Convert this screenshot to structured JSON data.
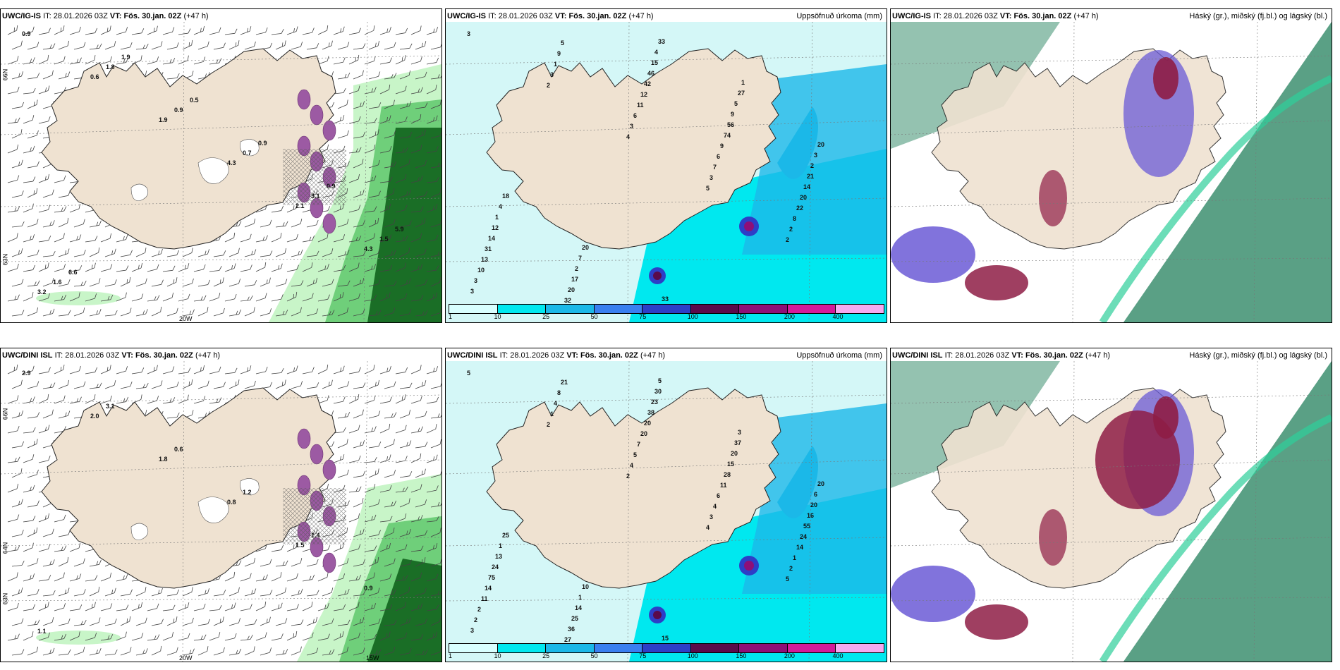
{
  "header": {
    "it_prefix": "IT:",
    "it_time": "28.01.2026 03Z",
    "vt_prefix": "VT:",
    "vt_time": "Fös. 30.jan. 02Z",
    "lead": "(+47 h)"
  },
  "panels": [
    {
      "model": "UWC/IG-IS",
      "title": "",
      "type": "wind"
    },
    {
      "model": "UWC/IG-IS",
      "title": "Uppsöfnuð úrkoma (mm)",
      "type": "precip"
    },
    {
      "model": "UWC/IG-IS",
      "title": "Háský (gr.), miðský (fj.bl.) og lágský (bl.)",
      "type": "cloud"
    },
    {
      "model": "UWC/DINI ISL",
      "title": "",
      "type": "wind"
    },
    {
      "model": "UWC/DINI ISL",
      "title": "Uppsöfnuð úrkoma (mm)",
      "type": "precip"
    },
    {
      "model": "UWC/DINI ISL",
      "title": "Háský (gr.), miðský (fj.bl.) og lágský (bl.)",
      "type": "cloud"
    }
  ],
  "axis_labels": {
    "lon_20w": "20W",
    "lon_15w": "15W",
    "lat_66n": "66N",
    "lat_64n": "64N",
    "lat_63n": "63N"
  },
  "colorbar": {
    "ticks": [
      "1",
      "10",
      "25",
      "50",
      "75",
      "100",
      "150",
      "200",
      "400"
    ],
    "colors": [
      "#d9ffff",
      "#00e8ef",
      "#1bb8e8",
      "#3a7ff0",
      "#2d3ec7",
      "#5a0a4a",
      "#8e0f77",
      "#d31a9a",
      "#f6a9f0"
    ]
  },
  "colors": {
    "land": "#efe2d1",
    "sea_precip": "#a6f2f2",
    "green_precip": "#1a6e26",
    "purple_snow": "#9c5aa3",
    "cloud_high": "#3d8f70",
    "cloud_mid": "#6b5bd6",
    "cloud_low": "#8e1d45"
  },
  "precip_labels_top": [
    "3",
    "2",
    "4",
    "5",
    "2",
    "3",
    "3",
    "3",
    "3",
    "2",
    "3",
    "1",
    "6",
    "7",
    "8",
    "10",
    "9",
    "11",
    "6",
    "22",
    "13",
    "5",
    "12",
    "9",
    "20",
    "31",
    "32",
    "42",
    "74",
    "14",
    "14",
    "20",
    "46",
    "56",
    "21",
    "12",
    "17",
    "15",
    "9",
    "2",
    "1",
    "2",
    "4",
    "5",
    "3",
    "4",
    "7",
    "33",
    "27",
    "20",
    "18",
    "20",
    "33",
    "1"
  ],
  "precip_labels_bottom": [
    "5",
    "2",
    "2",
    "4",
    "5",
    "3",
    "1",
    "4",
    "3",
    "2",
    "2",
    "4",
    "5",
    "4",
    "1",
    "2",
    "8",
    "7",
    "6",
    "14",
    "11",
    "21",
    "20",
    "11",
    "24",
    "14",
    "27",
    "20",
    "28",
    "55",
    "75",
    "36",
    "38",
    "15",
    "16",
    "24",
    "25",
    "23",
    "20",
    "20",
    "13",
    "14",
    "30",
    "37",
    "6",
    "1",
    "1",
    "5",
    "3",
    "20",
    "25",
    "10",
    "15"
  ],
  "wind_labels_top": [
    "0.9",
    "0.6",
    "1.9",
    "4.3",
    "2.1",
    "4.3",
    "3.2",
    "1.8",
    "0.9",
    "0.7",
    "3.1",
    "1.5",
    "1.6",
    "1.9",
    "0.5",
    "0.9",
    "0.9",
    "5.9",
    "6.6"
  ],
  "wind_labels_bottom": [
    "2.9",
    "2.0",
    "1.8",
    "0.8",
    "1.5",
    "0.9",
    "1.1",
    "3.1",
    "0.6",
    "1.2",
    "1.4"
  ]
}
